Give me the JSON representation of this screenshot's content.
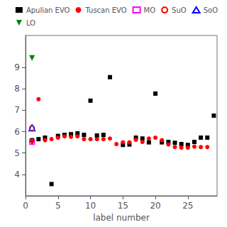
{
  "chart_data": {
    "type": "scatter",
    "xlabel": "label number",
    "xlim": [
      0,
      29.5
    ],
    "ylim": [
      3.0,
      10.5
    ],
    "xticks": [
      0,
      5,
      10,
      15,
      20,
      25
    ],
    "yticks": [
      4,
      5,
      6,
      7,
      8,
      9
    ],
    "grid": false,
    "legend": "upper right",
    "series": [
      {
        "name": "Apulian EVO",
        "color": "black",
        "marker": "square",
        "x": [
          1,
          2,
          3,
          5,
          6,
          7,
          8,
          9,
          10,
          11,
          12,
          13,
          15,
          16,
          17,
          18,
          19,
          20,
          21,
          22,
          23,
          24,
          25,
          26,
          27,
          28,
          29,
          4
        ],
        "values": [
          5.6,
          5.65,
          5.72,
          5.8,
          5.85,
          5.88,
          5.92,
          5.85,
          7.45,
          5.82,
          5.85,
          8.55,
          5.38,
          5.4,
          5.72,
          5.68,
          5.5,
          7.78,
          5.5,
          5.52,
          5.48,
          5.42,
          5.38,
          5.52,
          5.72,
          5.72,
          6.75,
          3.55
        ]
      },
      {
        "name": "Tuscan EVO",
        "color": "red",
        "marker": "circle",
        "x": [
          1,
          2,
          3,
          4,
          5,
          6,
          7,
          8,
          9,
          10,
          11,
          12,
          13,
          14,
          15,
          16,
          17,
          18,
          19,
          20,
          21,
          22,
          23,
          24,
          25,
          26,
          27,
          28
        ],
        "values": [
          5.52,
          7.52,
          5.6,
          5.65,
          5.72,
          5.78,
          5.76,
          5.78,
          5.65,
          5.65,
          5.65,
          5.65,
          5.68,
          5.42,
          5.5,
          5.5,
          5.62,
          5.52,
          5.68,
          5.72,
          5.6,
          5.4,
          5.28,
          5.25,
          5.25,
          5.3,
          5.28,
          5.28
        ]
      },
      {
        "name": "MO",
        "color": "magenta",
        "marker": "open-square",
        "x": [
          1
        ],
        "values": [
          5.52
        ]
      },
      {
        "name": "SuO",
        "color": "red",
        "marker": "open-circle",
        "x": [
          1
        ],
        "values": [
          6.18
        ]
      },
      {
        "name": "SoO",
        "color": "blue",
        "marker": "open-triangle-up",
        "x": [
          1
        ],
        "values": [
          6.18
        ]
      },
      {
        "name": "LO",
        "color": "green",
        "marker": "triangle-down",
        "x": [
          1
        ],
        "values": [
          9.45
        ]
      }
    ]
  }
}
